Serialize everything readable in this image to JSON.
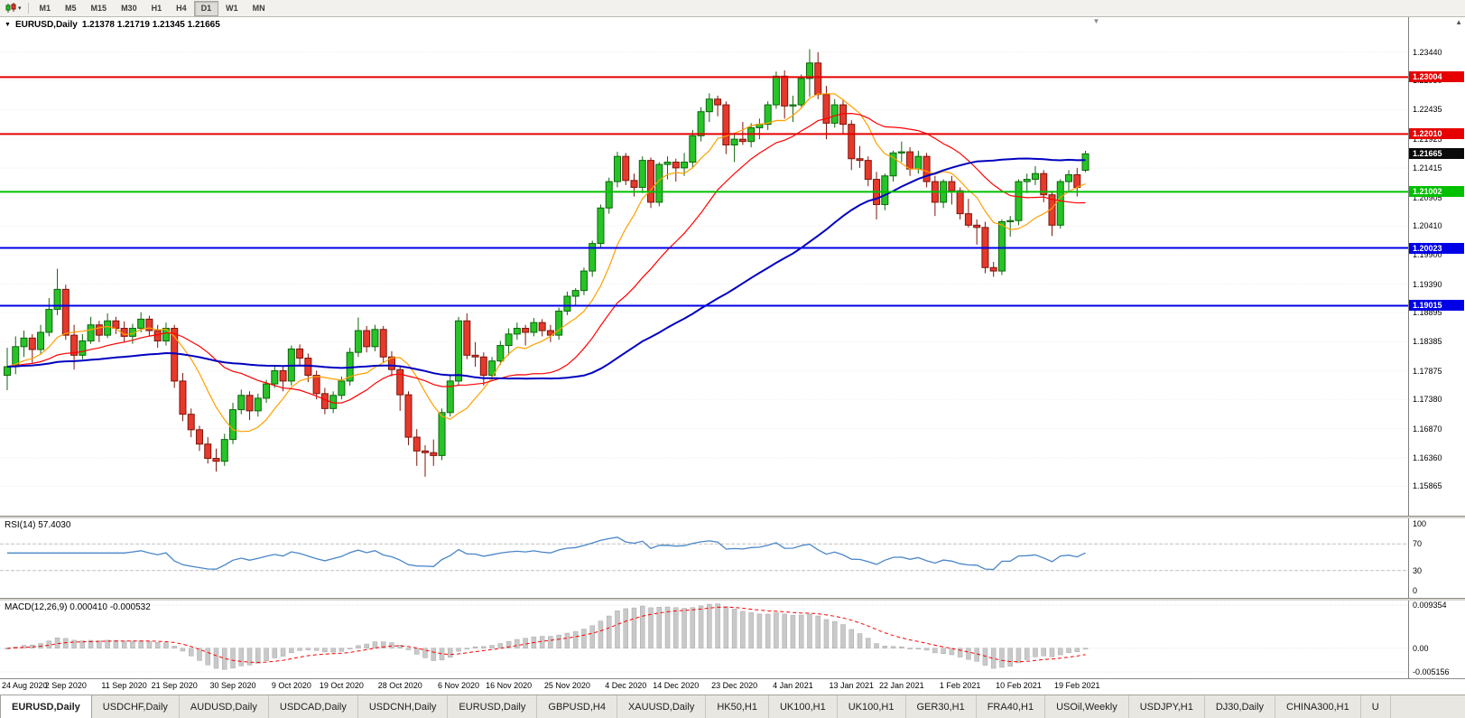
{
  "icons": {
    "collapse_arrow": "▼",
    "dropdown_caret": "▾",
    "scroll_up": "▲",
    "shift_marker": "▼"
  },
  "toolbar": {
    "timeframes": [
      "M1",
      "M5",
      "M15",
      "M30",
      "H1",
      "H4",
      "D1",
      "W1",
      "MN"
    ],
    "active": "D1"
  },
  "chart_header": {
    "symbol": "EURUSD,Daily",
    "ohlc": "1.21378 1.21719 1.21345 1.21665"
  },
  "main_axis": {
    "labels": [
      "1.23440",
      "1.22950",
      "1.22435",
      "1.21925",
      "1.21415",
      "1.20905",
      "1.20410",
      "1.19900",
      "1.19390",
      "1.18895",
      "1.18385",
      "1.17875",
      "1.17380",
      "1.16870",
      "1.16360",
      "1.15865"
    ]
  },
  "price_markers": {
    "current": {
      "label": "1.21665",
      "value": 1.21665,
      "bg": "#0a0a0a"
    },
    "lines": [
      {
        "label": "1.23004",
        "value": 1.23004,
        "color": "#e60000"
      },
      {
        "label": "1.22010",
        "value": 1.2201,
        "color": "#e60000"
      },
      {
        "label": "1.21002",
        "value": 1.21002,
        "color": "#00c000"
      },
      {
        "label": "1.20023",
        "value": 1.20023,
        "color": "#0000e6"
      },
      {
        "label": "1.19015",
        "value": 1.19015,
        "color": "#0000e6"
      }
    ]
  },
  "rsi_panel": {
    "label": "RSI(14) 57.4030",
    "axis_labels": [
      "100",
      "70",
      "30",
      "0"
    ]
  },
  "macd_panel": {
    "label": "MACD(12,26,9) 0.000410 -0.000532",
    "axis_labels": [
      "0.009354",
      "0.00",
      "-0.005156"
    ]
  },
  "time_axis": {
    "labels": [
      "24 Aug 2020",
      "2 Sep 2020",
      "11 Sep 2020",
      "21 Sep 2020",
      "30 Sep 2020",
      "9 Oct 2020",
      "19 Oct 2020",
      "28 Oct 2020",
      "6 Nov 2020",
      "16 Nov 2020",
      "25 Nov 2020",
      "4 Dec 2020",
      "14 Dec 2020",
      "23 Dec 2020",
      "4 Jan 2021",
      "13 Jan 2021",
      "22 Jan 2021",
      "1 Feb 2021",
      "10 Feb 2021",
      "19 Feb 2021"
    ]
  },
  "tabs": [
    {
      "label": "EURUSD,Daily",
      "active": true
    },
    {
      "label": "USDCHF,Daily",
      "active": false
    },
    {
      "label": "AUDUSD,Daily",
      "active": false
    },
    {
      "label": "USDCAD,Daily",
      "active": false
    },
    {
      "label": "USDCNH,Daily",
      "active": false
    },
    {
      "label": "EURUSD,Daily",
      "active": false
    },
    {
      "label": "GBPUSD,H4",
      "active": false
    },
    {
      "label": "XAUUSD,Daily",
      "active": false
    },
    {
      "label": "HK50,H1",
      "active": false
    },
    {
      "label": "UK100,H1",
      "active": false
    },
    {
      "label": "UK100,H1",
      "active": false
    },
    {
      "label": "GER30,H1",
      "active": false
    },
    {
      "label": "FRA40,H1",
      "active": false
    },
    {
      "label": "USOil,Weekly",
      "active": false
    },
    {
      "label": "USDJPY,H1",
      "active": false
    },
    {
      "label": "DJ30,Daily",
      "active": false
    },
    {
      "label": "CHINA300,H1",
      "active": false
    },
    {
      "label": "U",
      "active": false
    }
  ],
  "chart_data": {
    "type": "candlestick",
    "symbol": "EURUSD",
    "timeframe": "Daily",
    "y_range": [
      1.1535,
      1.2405
    ],
    "x_tick_indices": [
      0,
      7,
      14,
      20,
      27,
      34,
      40,
      47,
      54,
      60,
      67,
      74,
      80,
      87,
      94,
      101,
      107,
      114,
      121,
      128
    ],
    "candle_colors": {
      "up_fill": "#27c427",
      "up_stroke": "#0c660c",
      "down_fill": "#e6392b",
      "down_stroke": "#7d150b"
    },
    "overlays": {
      "moving_averages": [
        {
          "period": 8,
          "color": "#ffa000",
          "width": 1.2
        },
        {
          "period": 20,
          "color": "#ff0000",
          "width": 1.2
        },
        {
          "period": 50,
          "color": "#0000c0",
          "width": 2
        }
      ],
      "hlines": [
        1.23004,
        1.2201,
        1.21002,
        1.20023,
        1.19015
      ]
    },
    "indicators": {
      "rsi": {
        "period": 14,
        "current": 57.403,
        "levels": [
          70,
          30
        ],
        "color": "#4a86c8",
        "range": [
          0,
          100
        ]
      },
      "macd": {
        "fast": 12,
        "slow": 26,
        "signal": 9,
        "current": [
          0.00041,
          -0.000532
        ],
        "range": [
          -0.005156,
          0.009354
        ],
        "histogram_color": "#c9c9c9",
        "signal_color": "#ff0000"
      }
    },
    "ohlc": [
      [
        1.178,
        1.1828,
        1.1754,
        1.1795
      ],
      [
        1.1795,
        1.1848,
        1.1782,
        1.183
      ],
      [
        1.183,
        1.1858,
        1.1812,
        1.1845
      ],
      [
        1.1845,
        1.1852,
        1.1802,
        1.1825
      ],
      [
        1.1825,
        1.1868,
        1.1818,
        1.1855
      ],
      [
        1.1855,
        1.1915,
        1.1848,
        1.1895
      ],
      [
        1.1895,
        1.1966,
        1.1885,
        1.193
      ],
      [
        1.193,
        1.1938,
        1.1842,
        1.185
      ],
      [
        1.185,
        1.1868,
        1.179,
        1.1815
      ],
      [
        1.1815,
        1.1852,
        1.1808,
        1.184
      ],
      [
        1.184,
        1.1882,
        1.1835,
        1.1868
      ],
      [
        1.1868,
        1.1875,
        1.1838,
        1.185
      ],
      [
        1.185,
        1.1888,
        1.1845,
        1.1875
      ],
      [
        1.1875,
        1.1882,
        1.1852,
        1.1862
      ],
      [
        1.1862,
        1.1874,
        1.1838,
        1.1848
      ],
      [
        1.1848,
        1.187,
        1.1835,
        1.1862
      ],
      [
        1.1862,
        1.189,
        1.1855,
        1.1878
      ],
      [
        1.1878,
        1.1884,
        1.1848,
        1.1858
      ],
      [
        1.1858,
        1.1868,
        1.1828,
        1.184
      ],
      [
        1.184,
        1.1872,
        1.1832,
        1.1862
      ],
      [
        1.1862,
        1.1868,
        1.1758,
        1.177
      ],
      [
        1.177,
        1.1784,
        1.17,
        1.1712
      ],
      [
        1.1712,
        1.1722,
        1.1672,
        1.1685
      ],
      [
        1.1685,
        1.1692,
        1.1648,
        1.166
      ],
      [
        1.166,
        1.1672,
        1.1626,
        1.1635
      ],
      [
        1.1635,
        1.1652,
        1.1612,
        1.163
      ],
      [
        1.163,
        1.1678,
        1.1622,
        1.1668
      ],
      [
        1.1668,
        1.1732,
        1.166,
        1.172
      ],
      [
        1.172,
        1.1755,
        1.1712,
        1.1745
      ],
      [
        1.1745,
        1.1752,
        1.1702,
        1.1718
      ],
      [
        1.1718,
        1.1748,
        1.1708,
        1.174
      ],
      [
        1.174,
        1.1772,
        1.1732,
        1.1765
      ],
      [
        1.1765,
        1.1796,
        1.1758,
        1.1788
      ],
      [
        1.1788,
        1.1795,
        1.1752,
        1.177
      ],
      [
        1.177,
        1.1832,
        1.1762,
        1.1826
      ],
      [
        1.1826,
        1.1834,
        1.1798,
        1.181
      ],
      [
        1.181,
        1.1818,
        1.1768,
        1.178
      ],
      [
        1.178,
        1.1788,
        1.1738,
        1.1748
      ],
      [
        1.1748,
        1.1758,
        1.1712,
        1.1722
      ],
      [
        1.1722,
        1.1752,
        1.1714,
        1.1745
      ],
      [
        1.1745,
        1.1778,
        1.1738,
        1.177
      ],
      [
        1.177,
        1.1828,
        1.1762,
        1.182
      ],
      [
        1.182,
        1.1881,
        1.1812,
        1.1858
      ],
      [
        1.1858,
        1.1866,
        1.182,
        1.183
      ],
      [
        1.183,
        1.1868,
        1.1822,
        1.186
      ],
      [
        1.186,
        1.1866,
        1.1802,
        1.1812
      ],
      [
        1.1812,
        1.1822,
        1.1778,
        1.179
      ],
      [
        1.179,
        1.1796,
        1.1718,
        1.1746
      ],
      [
        1.1746,
        1.1752,
        1.1658,
        1.1672
      ],
      [
        1.1672,
        1.1686,
        1.1622,
        1.1648
      ],
      [
        1.1648,
        1.1658,
        1.1603,
        1.1645
      ],
      [
        1.1645,
        1.1668,
        1.1622,
        1.164
      ],
      [
        1.164,
        1.1722,
        1.1632,
        1.1715
      ],
      [
        1.1715,
        1.1782,
        1.1708,
        1.177
      ],
      [
        1.177,
        1.1882,
        1.1762,
        1.1875
      ],
      [
        1.1875,
        1.1888,
        1.1808,
        1.1815
      ],
      [
        1.1815,
        1.1838,
        1.1795,
        1.1812
      ],
      [
        1.1812,
        1.182,
        1.1762,
        1.178
      ],
      [
        1.178,
        1.1812,
        1.1772,
        1.1805
      ],
      [
        1.1805,
        1.184,
        1.1798,
        1.1832
      ],
      [
        1.1832,
        1.1862,
        1.1815,
        1.1852
      ],
      [
        1.1852,
        1.1872,
        1.1842,
        1.1862
      ],
      [
        1.1862,
        1.1868,
        1.1832,
        1.1855
      ],
      [
        1.1855,
        1.188,
        1.1848,
        1.1872
      ],
      [
        1.1872,
        1.1878,
        1.1848,
        1.1858
      ],
      [
        1.1858,
        1.1868,
        1.1838,
        1.185
      ],
      [
        1.185,
        1.1898,
        1.1842,
        1.1892
      ],
      [
        1.1892,
        1.1926,
        1.1885,
        1.1918
      ],
      [
        1.1918,
        1.1932,
        1.1902,
        1.1928
      ],
      [
        1.1928,
        1.1968,
        1.192,
        1.1962
      ],
      [
        1.1962,
        1.2015,
        1.1952,
        1.201
      ],
      [
        1.201,
        1.2078,
        1.2002,
        1.2072
      ],
      [
        1.2072,
        1.2125,
        1.2062,
        1.2118
      ],
      [
        1.2118,
        1.217,
        1.2108,
        1.2162
      ],
      [
        1.2162,
        1.2168,
        1.2112,
        1.212
      ],
      [
        1.212,
        1.2132,
        1.2092,
        1.2108
      ],
      [
        1.2108,
        1.2162,
        1.2098,
        1.2155
      ],
      [
        1.2155,
        1.216,
        1.2072,
        1.2082
      ],
      [
        1.2082,
        1.2152,
        1.2075,
        1.2148
      ],
      [
        1.2148,
        1.2162,
        1.2122,
        1.2152
      ],
      [
        1.2152,
        1.2158,
        1.2118,
        1.2142
      ],
      [
        1.2142,
        1.2168,
        1.2128,
        1.2152
      ],
      [
        1.2152,
        1.2208,
        1.2142,
        1.2198
      ],
      [
        1.2198,
        1.2248,
        1.2188,
        1.224
      ],
      [
        1.224,
        1.2272,
        1.2222,
        1.2262
      ],
      [
        1.2262,
        1.2268,
        1.2232,
        1.2252
      ],
      [
        1.2252,
        1.2258,
        1.2166,
        1.2182
      ],
      [
        1.2182,
        1.2202,
        1.2152,
        1.2192
      ],
      [
        1.2192,
        1.2222,
        1.2182,
        1.2188
      ],
      [
        1.2188,
        1.222,
        1.2178,
        1.2212
      ],
      [
        1.2212,
        1.2228,
        1.2192,
        1.2218
      ],
      [
        1.2218,
        1.2258,
        1.2208,
        1.2252
      ],
      [
        1.2252,
        1.231,
        1.2245,
        1.2302
      ],
      [
        1.2302,
        1.2312,
        1.2228,
        1.225
      ],
      [
        1.225,
        1.2268,
        1.2222,
        1.2252
      ],
      [
        1.2252,
        1.2305,
        1.2248,
        1.2298
      ],
      [
        1.2298,
        1.2349,
        1.2266,
        1.2325
      ],
      [
        1.2325,
        1.2344,
        1.2262,
        1.227
      ],
      [
        1.227,
        1.2285,
        1.2192,
        1.222
      ],
      [
        1.222,
        1.2262,
        1.2212,
        1.2252
      ],
      [
        1.2252,
        1.2262,
        1.2202,
        1.2218
      ],
      [
        1.2218,
        1.2225,
        1.2138,
        1.2158
      ],
      [
        1.2158,
        1.218,
        1.2142,
        1.2155
      ],
      [
        1.2155,
        1.2162,
        1.211,
        1.2122
      ],
      [
        1.2122,
        1.2135,
        1.2052,
        1.2078
      ],
      [
        1.2078,
        1.2132,
        1.2068,
        1.2128
      ],
      [
        1.2128,
        1.2172,
        1.2118,
        1.2168
      ],
      [
        1.2168,
        1.2188,
        1.2152,
        1.217
      ],
      [
        1.217,
        1.2178,
        1.2128,
        1.214
      ],
      [
        1.214,
        1.2172,
        1.2132,
        1.2162
      ],
      [
        1.2162,
        1.2168,
        1.2108,
        1.2118
      ],
      [
        1.2118,
        1.2128,
        1.2058,
        1.2082
      ],
      [
        1.2082,
        1.2122,
        1.2072,
        1.2118
      ],
      [
        1.2118,
        1.2128,
        1.2078,
        1.2102
      ],
      [
        1.2102,
        1.2108,
        1.2052,
        1.2062
      ],
      [
        1.2062,
        1.2088,
        1.2038,
        1.2042
      ],
      [
        1.2042,
        1.2052,
        1.2008,
        1.2038
      ],
      [
        1.2038,
        1.2048,
        1.1958,
        1.1968
      ],
      [
        1.1968,
        1.1978,
        1.1952,
        1.1962
      ],
      [
        1.1962,
        1.2052,
        1.1955,
        1.2048
      ],
      [
        1.2048,
        1.2058,
        1.2022,
        1.205
      ],
      [
        1.205,
        1.2122,
        1.2042,
        1.2118
      ],
      [
        1.2118,
        1.2132,
        1.2098,
        1.2122
      ],
      [
        1.2122,
        1.2145,
        1.2112,
        1.2132
      ],
      [
        1.2132,
        1.2138,
        1.2082,
        1.2095
      ],
      [
        1.2095,
        1.2102,
        1.2023,
        1.2042
      ],
      [
        1.2042,
        1.2122,
        1.2036,
        1.2118
      ],
      [
        1.2118,
        1.2138,
        1.2102,
        1.213
      ],
      [
        1.213,
        1.2142,
        1.2092,
        1.2108
      ],
      [
        1.21378,
        1.21719,
        1.21345,
        1.21665
      ]
    ]
  }
}
